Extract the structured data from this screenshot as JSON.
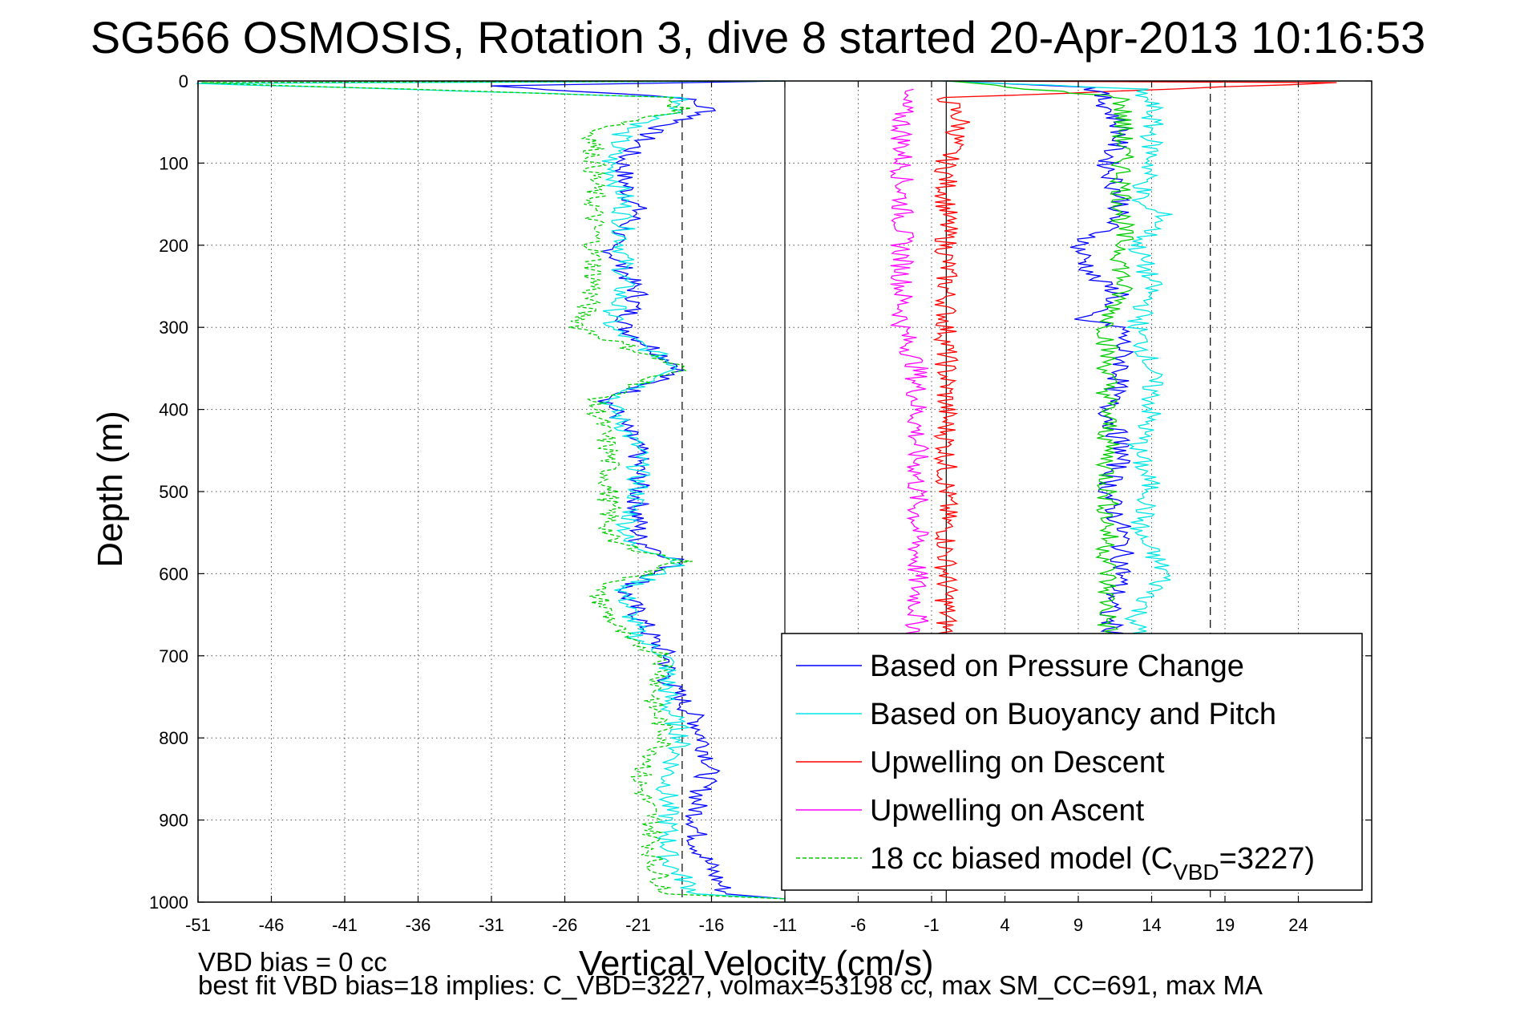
{
  "title": "SG566 OSMOSIS, Rotation 3, dive 8 started 20-Apr-2013 10:16:53",
  "footer": {
    "line1": "VBD bias = 0 cc",
    "line2": "best fit VBD bias=18 implies: C_VBD=3227, volmax=53198 cc, max SM_CC=691, max MA"
  },
  "chart_data": {
    "type": "line",
    "xlabel": "Vertical Velocity (cm/s)",
    "ylabel": "Depth (m)",
    "xlim": [
      -51,
      29
    ],
    "ylim": [
      1000,
      0
    ],
    "x_ticks": [
      "-51",
      "-46",
      "-41",
      "-36",
      "-31",
      "-26",
      "-21",
      "-16",
      "-11",
      "-6",
      "-1",
      "4",
      "9",
      "14",
      "19",
      "24"
    ],
    "y_ticks": [
      "0",
      "100",
      "200",
      "300",
      "400",
      "500",
      "600",
      "700",
      "800",
      "900",
      "1000"
    ],
    "grid": true,
    "legend_position": "bottom-right",
    "reference_lines": {
      "dashed_x": [
        -18,
        18
      ],
      "solid_x": [
        -11,
        0
      ]
    },
    "series": [
      {
        "name": "Based on Pressure Change",
        "color": "#0000ff",
        "style": "solid",
        "points": [
          [
            -11,
            0
          ],
          [
            -31,
            6
          ],
          [
            -18,
            20
          ],
          [
            -16,
            36
          ],
          [
            -20,
            60
          ],
          [
            -22,
            95
          ],
          [
            -22,
            120
          ],
          [
            -21,
            160
          ],
          [
            -23,
            200
          ],
          [
            -21,
            260
          ],
          [
            -22,
            300
          ],
          [
            -18,
            350
          ],
          [
            -23,
            390
          ],
          [
            -21,
            450
          ],
          [
            -21,
            500
          ],
          [
            -21,
            560
          ],
          [
            -18,
            585
          ],
          [
            -22,
            620
          ],
          [
            -20,
            680
          ],
          [
            -19,
            700
          ],
          [
            -19,
            730
          ],
          [
            -17,
            780
          ],
          [
            -16,
            830
          ],
          [
            -17,
            880
          ],
          [
            -17,
            930
          ],
          [
            -16,
            960
          ],
          [
            -15,
            990
          ],
          [
            -11,
            996
          ]
        ]
      },
      {
        "name": "Based on Buoyancy and Pitch",
        "color": "#00e5e5",
        "style": "solid",
        "points": [
          [
            -11,
            0
          ],
          [
            -51,
            3
          ],
          [
            -18,
            20
          ],
          [
            -18,
            36
          ],
          [
            -22,
            60
          ],
          [
            -23,
            100
          ],
          [
            -22,
            140
          ],
          [
            -22,
            200
          ],
          [
            -22,
            250
          ],
          [
            -23,
            300
          ],
          [
            -18,
            350
          ],
          [
            -23,
            390
          ],
          [
            -21,
            450
          ],
          [
            -21,
            500
          ],
          [
            -22,
            560
          ],
          [
            -18,
            585
          ],
          [
            -22,
            620
          ],
          [
            -21,
            680
          ],
          [
            -19,
            700
          ],
          [
            -19,
            760
          ],
          [
            -18,
            800
          ],
          [
            -19,
            850
          ],
          [
            -19,
            900
          ],
          [
            -19,
            950
          ],
          [
            -17,
            990
          ],
          [
            -11,
            996
          ]
        ]
      },
      {
        "name": "Upwelling on Descent",
        "color": "#ff0000",
        "style": "solid",
        "points": [
          [
            0,
            0
          ],
          [
            27,
            2
          ],
          [
            0,
            20
          ],
          [
            1,
            50
          ],
          [
            0,
            100
          ],
          [
            0,
            150
          ],
          [
            0,
            200
          ],
          [
            0,
            250
          ],
          [
            0,
            300
          ],
          [
            0,
            350
          ],
          [
            0,
            400
          ],
          [
            0,
            450
          ],
          [
            0,
            500
          ],
          [
            0,
            550
          ],
          [
            0,
            600
          ],
          [
            0,
            650
          ],
          [
            0,
            700
          ]
        ]
      },
      {
        "name": "Upwelling on Ascent",
        "color": "#ff00ff",
        "style": "solid",
        "points": [
          [
            -3,
            10
          ],
          [
            -3,
            50
          ],
          [
            -3,
            100
          ],
          [
            -3,
            150
          ],
          [
            -3,
            200
          ],
          [
            -3,
            250
          ],
          [
            -3,
            300
          ],
          [
            -2,
            350
          ],
          [
            -2,
            400
          ],
          [
            -2,
            450
          ],
          [
            -2,
            500
          ],
          [
            -2,
            550
          ],
          [
            -2,
            600
          ],
          [
            -2,
            650
          ],
          [
            -2,
            700
          ]
        ]
      },
      {
        "name": "18 cc biased model (C_VBD=3227)",
        "color": "#00cc00",
        "style": "dashed",
        "points": [
          [
            -11,
            0
          ],
          [
            -51,
            2
          ],
          [
            -19,
            20
          ],
          [
            -18,
            36
          ],
          [
            -24,
            60
          ],
          [
            -24,
            100
          ],
          [
            -24,
            150
          ],
          [
            -24,
            200
          ],
          [
            -24,
            250
          ],
          [
            -25,
            300
          ],
          [
            -18,
            350
          ],
          [
            -24,
            390
          ],
          [
            -23,
            450
          ],
          [
            -23,
            500
          ],
          [
            -23,
            560
          ],
          [
            -18,
            585
          ],
          [
            -24,
            620
          ],
          [
            -22,
            680
          ],
          [
            -19,
            700
          ],
          [
            -20,
            760
          ],
          [
            -19,
            800
          ],
          [
            -21,
            850
          ],
          [
            -20,
            900
          ],
          [
            -20,
            950
          ],
          [
            -19,
            990
          ],
          [
            -11,
            996
          ]
        ]
      },
      {
        "name": "",
        "color": "#0000ff",
        "style": "solid",
        "points": [
          [
            0,
            0
          ],
          [
            10,
            8
          ],
          [
            11,
            30
          ],
          [
            12,
            60
          ],
          [
            11,
            100
          ],
          [
            12,
            150
          ],
          [
            11,
            180
          ],
          [
            9,
            200
          ],
          [
            10,
            240
          ],
          [
            12,
            260
          ],
          [
            9,
            290
          ],
          [
            12,
            300
          ],
          [
            12,
            350
          ],
          [
            11,
            400
          ],
          [
            12,
            450
          ],
          [
            11,
            500
          ],
          [
            12,
            550
          ],
          [
            12,
            600
          ],
          [
            11,
            650
          ],
          [
            12,
            700
          ]
        ]
      },
      {
        "name": "",
        "color": "#00e5e5",
        "style": "solid",
        "points": [
          [
            0,
            0
          ],
          [
            13,
            10
          ],
          [
            14,
            30
          ],
          [
            14,
            60
          ],
          [
            14,
            100
          ],
          [
            13,
            150
          ],
          [
            15,
            165
          ],
          [
            13,
            200
          ],
          [
            14,
            250
          ],
          [
            13,
            300
          ],
          [
            14,
            350
          ],
          [
            14,
            400
          ],
          [
            13,
            450
          ],
          [
            14,
            500
          ],
          [
            13,
            550
          ],
          [
            15,
            600
          ],
          [
            13,
            650
          ],
          [
            13,
            700
          ]
        ]
      },
      {
        "name": "",
        "color": "#00cc00",
        "style": "solid",
        "points": [
          [
            0,
            0
          ],
          [
            12,
            20
          ],
          [
            12,
            60
          ],
          [
            12,
            100
          ],
          [
            12,
            150
          ],
          [
            12,
            200
          ],
          [
            12,
            250
          ],
          [
            11,
            300
          ],
          [
            11,
            350
          ],
          [
            11,
            400
          ],
          [
            11,
            450
          ],
          [
            11,
            500
          ],
          [
            11,
            550
          ],
          [
            11,
            600
          ],
          [
            11,
            650
          ],
          [
            11,
            700
          ]
        ]
      }
    ]
  }
}
